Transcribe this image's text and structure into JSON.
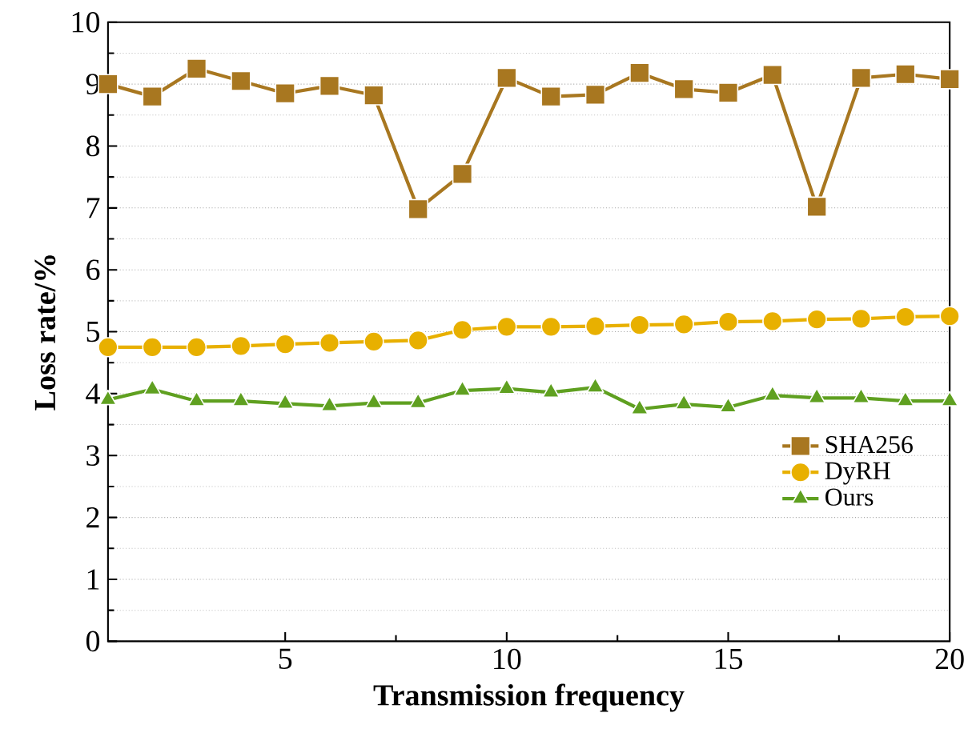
{
  "chart_data": {
    "type": "line",
    "xlabel": "Transmission frequency",
    "ylabel": "Loss rate/%",
    "x": [
      1,
      2,
      3,
      4,
      5,
      6,
      7,
      8,
      9,
      10,
      11,
      12,
      13,
      14,
      15,
      16,
      17,
      18,
      19,
      20
    ],
    "series": [
      {
        "name": "SHA256",
        "color": "#a87720",
        "marker": "square",
        "values": [
          9.0,
          8.8,
          9.25,
          9.05,
          8.85,
          8.97,
          8.82,
          6.98,
          7.55,
          9.1,
          8.8,
          8.83,
          9.18,
          8.92,
          8.86,
          9.15,
          7.02,
          9.1,
          9.16,
          9.08
        ]
      },
      {
        "name": "DyRH",
        "color": "#e8b000",
        "marker": "circle",
        "values": [
          4.75,
          4.75,
          4.75,
          4.77,
          4.8,
          4.82,
          4.84,
          4.86,
          5.03,
          5.08,
          5.08,
          5.09,
          5.11,
          5.12,
          5.16,
          5.17,
          5.2,
          5.21,
          5.24,
          5.25
        ]
      },
      {
        "name": "Ours",
        "color": "#5fa020",
        "marker": "triangle",
        "values": [
          3.9,
          4.07,
          3.88,
          3.88,
          3.84,
          3.8,
          3.85,
          3.85,
          4.05,
          4.08,
          4.02,
          4.1,
          3.75,
          3.83,
          3.78,
          3.97,
          3.93,
          3.93,
          3.88,
          3.88
        ]
      }
    ],
    "xlim": [
      1,
      20
    ],
    "xticks": [
      5,
      10,
      15,
      20
    ],
    "ylim": [
      0,
      10
    ],
    "yticks": [
      0,
      1,
      2,
      3,
      4,
      5,
      6,
      7,
      8,
      9,
      10
    ],
    "grid": "y",
    "legend": "bottom right",
    "line_style": "solid"
  }
}
